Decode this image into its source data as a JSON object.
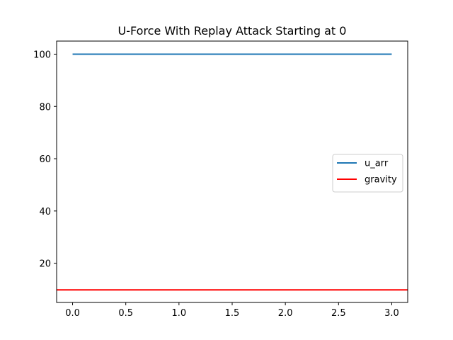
{
  "chart_data": {
    "type": "line",
    "title": "U-Force With Replay Attack Starting at 0",
    "xlabel": "",
    "ylabel": "",
    "xlim": [
      -0.15,
      3.15
    ],
    "ylim": [
      5,
      105
    ],
    "x_ticks": [
      0.0,
      0.5,
      1.0,
      1.5,
      2.0,
      2.5,
      3.0
    ],
    "x_tick_labels": [
      "0.0",
      "0.5",
      "1.0",
      "1.5",
      "2.0",
      "2.5",
      "3.0"
    ],
    "y_ticks": [
      20,
      40,
      60,
      80,
      100
    ],
    "y_tick_labels": [
      "20",
      "40",
      "60",
      "80",
      "100"
    ],
    "grid": false,
    "legend_position": "center-right",
    "series": [
      {
        "name": "u_arr",
        "color": "#1f77b4",
        "x": [
          0.0,
          3.0
        ],
        "y": [
          100,
          100
        ]
      }
    ],
    "hlines": [
      {
        "name": "gravity",
        "color": "#ff0000",
        "y": 9.81
      }
    ]
  }
}
